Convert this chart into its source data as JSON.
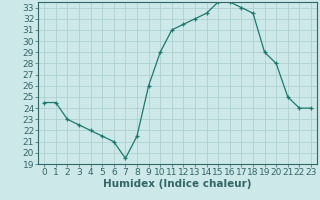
{
  "x": [
    0,
    1,
    2,
    3,
    4,
    5,
    6,
    7,
    8,
    9,
    10,
    11,
    12,
    13,
    14,
    15,
    16,
    17,
    18,
    19,
    20,
    21,
    22,
    23
  ],
  "y": [
    24.5,
    24.5,
    23.0,
    22.5,
    22.0,
    21.5,
    21.0,
    19.5,
    21.5,
    26.0,
    29.0,
    31.0,
    31.5,
    32.0,
    32.5,
    33.5,
    33.5,
    33.0,
    32.5,
    29.0,
    28.0,
    25.0,
    24.0,
    24.0
  ],
  "line_color": "#1a7a6e",
  "marker": "+",
  "background_color": "#cce8e8",
  "grid_color": "#aacccc",
  "xlabel": "Humidex (Indice chaleur)",
  "ylim": [
    19,
    33.5
  ],
  "xlim": [
    -0.5,
    23.5
  ],
  "yticks": [
    19,
    20,
    21,
    22,
    23,
    24,
    25,
    26,
    27,
    28,
    29,
    30,
    31,
    32,
    33
  ],
  "xticks": [
    0,
    1,
    2,
    3,
    4,
    5,
    6,
    7,
    8,
    9,
    10,
    11,
    12,
    13,
    14,
    15,
    16,
    17,
    18,
    19,
    20,
    21,
    22,
    23
  ],
  "axis_color": "#336666",
  "tick_font_size": 6.5,
  "xlabel_fontsize": 7.5,
  "line_width": 0.9,
  "marker_size": 3.5,
  "marker_edge_width": 0.9
}
